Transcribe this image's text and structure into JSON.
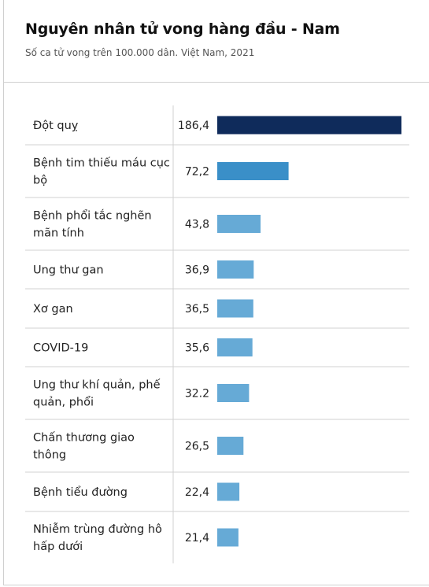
{
  "title": "Nguyên nhân tử vong hàng đầu - Nam",
  "subtitle": "Số ca tử vong trên 100.000 dân. Việt Nam, 2021",
  "colors": {
    "top": "#0f2b5b",
    "second": "#3a8fc8",
    "rest": "#66aad6",
    "rule": "#d0d0d0"
  },
  "chart_data": {
    "type": "bar",
    "orientation": "horizontal",
    "title": "Nguyên nhân tử vong hàng đầu - Nam",
    "subtitle": "Số ca tử vong trên 100.000 dân. Việt Nam, 2021",
    "categories": [
      [
        "Đột quỵ"
      ],
      [
        "Bệnh tim thiếu máu cục",
        "bộ"
      ],
      [
        "Bệnh phổi tắc nghẽn",
        "mãn tính"
      ],
      [
        "Ung thư gan"
      ],
      [
        "Xơ gan"
      ],
      [
        "COVID-19"
      ],
      [
        "Ung thư khí quản, phế",
        "quản, phổi"
      ],
      [
        "Chấn thương giao",
        "thông"
      ],
      [
        "Bệnh tiểu đường"
      ],
      [
        "Nhiễm trùng đường hô",
        "hấp dưới"
      ]
    ],
    "values": [
      186.4,
      72.2,
      43.8,
      36.9,
      36.5,
      35.6,
      32.2,
      26.5,
      22.4,
      21.4
    ],
    "value_labels": [
      "186,4",
      "72,2",
      "43,8",
      "36,9",
      "36,5",
      "35,6",
      "32.2",
      "26,5",
      "22,4",
      "21,4"
    ],
    "xlim": [
      0,
      186.4
    ]
  }
}
